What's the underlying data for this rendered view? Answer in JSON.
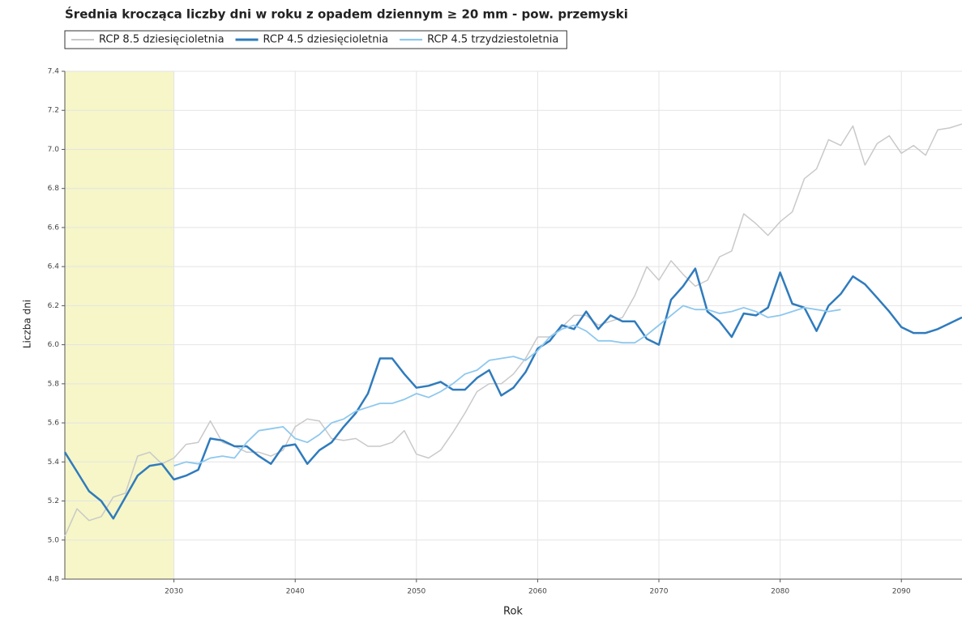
{
  "chart_data": {
    "type": "line",
    "title": "Średnia krocząca liczby dni w roku z opadem dziennym ≥ 20 mm - pow. przemyski",
    "x_label": "Rok",
    "y_label": "Liczba dni",
    "x": [
      2021,
      2022,
      2023,
      2024,
      2025,
      2026,
      2027,
      2028,
      2029,
      2030,
      2031,
      2032,
      2033,
      2034,
      2035,
      2036,
      2037,
      2038,
      2039,
      2040,
      2041,
      2042,
      2043,
      2044,
      2045,
      2046,
      2047,
      2048,
      2049,
      2050,
      2051,
      2052,
      2053,
      2054,
      2055,
      2056,
      2057,
      2058,
      2059,
      2060,
      2061,
      2062,
      2063,
      2064,
      2065,
      2066,
      2067,
      2068,
      2069,
      2070,
      2071,
      2072,
      2073,
      2074,
      2075,
      2076,
      2077,
      2078,
      2079,
      2080,
      2081,
      2082,
      2083,
      2084,
      2085,
      2086,
      2087,
      2088,
      2089,
      2090,
      2091,
      2092,
      2093,
      2094,
      2095
    ],
    "series": [
      {
        "name": "RCP 8.5 dziesięcioletnia",
        "color": "#c9c9c9",
        "width": 1.5,
        "values": [
          5.02,
          5.16,
          5.1,
          5.12,
          5.22,
          5.24,
          5.43,
          5.45,
          5.39,
          5.42,
          5.49,
          5.5,
          5.61,
          5.5,
          5.48,
          5.45,
          5.45,
          5.43,
          5.46,
          5.58,
          5.62,
          5.61,
          5.52,
          5.51,
          5.52,
          5.48,
          5.48,
          5.5,
          5.56,
          5.44,
          5.42,
          5.46,
          5.55,
          5.65,
          5.76,
          5.8,
          5.8,
          5.85,
          5.93,
          6.04,
          6.04,
          6.09,
          6.15,
          6.15,
          6.1,
          6.12,
          6.14,
          6.25,
          6.4,
          6.33,
          6.43,
          6.36,
          6.3,
          6.33,
          6.45,
          6.48,
          6.67,
          6.62,
          6.56,
          6.63,
          6.68,
          6.85,
          6.9,
          7.05,
          7.02,
          7.12,
          6.92,
          7.03,
          7.07,
          6.98,
          7.02,
          6.97,
          7.1,
          7.11,
          7.13
        ]
      },
      {
        "name": "RCP 4.5 dziesięcioletnia",
        "color": "#2f7bbd",
        "width": 2.5,
        "values": [
          5.45,
          5.35,
          5.25,
          5.2,
          5.11,
          5.22,
          5.33,
          5.38,
          5.39,
          5.31,
          5.33,
          5.36,
          5.52,
          5.51,
          5.48,
          5.48,
          5.43,
          5.39,
          5.48,
          5.49,
          5.39,
          5.46,
          5.5,
          5.58,
          5.65,
          5.75,
          5.93,
          5.93,
          5.85,
          5.78,
          5.79,
          5.81,
          5.77,
          5.77,
          5.83,
          5.87,
          5.74,
          5.78,
          5.86,
          5.98,
          6.02,
          6.1,
          6.08,
          6.17,
          6.08,
          6.15,
          6.12,
          6.12,
          6.03,
          6.0,
          6.23,
          6.3,
          6.39,
          6.17,
          6.12,
          6.04,
          6.16,
          6.15,
          6.19,
          6.37,
          6.21,
          6.19,
          6.07,
          6.2,
          6.26,
          6.35,
          6.31,
          6.24,
          6.17,
          6.09,
          6.06,
          6.06,
          6.08,
          6.11,
          6.14
        ]
      },
      {
        "name": "RCP 4.5 trzydziestoletnia",
        "color": "#8ec8ee",
        "width": 1.8,
        "values": [
          null,
          null,
          null,
          null,
          null,
          null,
          null,
          null,
          null,
          5.38,
          5.4,
          5.39,
          5.42,
          5.43,
          5.42,
          5.5,
          5.56,
          5.57,
          5.58,
          5.52,
          5.5,
          5.54,
          5.6,
          5.62,
          5.66,
          5.68,
          5.7,
          5.7,
          5.72,
          5.75,
          5.73,
          5.76,
          5.8,
          5.85,
          5.87,
          5.92,
          5.93,
          5.94,
          5.92,
          5.97,
          6.04,
          6.08,
          6.1,
          6.07,
          6.02,
          6.02,
          6.01,
          6.01,
          6.05,
          6.1,
          6.15,
          6.2,
          6.18,
          6.18,
          6.16,
          6.17,
          6.19,
          6.17,
          6.14,
          6.15,
          6.17,
          6.19,
          6.18,
          6.17,
          6.18,
          null,
          null,
          null,
          null,
          null,
          null,
          null,
          null,
          null,
          null
        ]
      }
    ],
    "xlim": [
      2021,
      2095
    ],
    "ylim": [
      4.8,
      7.4
    ],
    "xticks": [
      2030,
      2040,
      2050,
      2060,
      2070,
      2080,
      2090
    ],
    "yticks": [
      4.8,
      {
        "value": 5,
        "label": "5.0"
      },
      5.2,
      5.4,
      5.6,
      5.8,
      {
        "value": 6,
        "label": "6.0"
      },
      6.2,
      6.4,
      6.6,
      6.8,
      {
        "value": 7,
        "label": "7.0"
      },
      7.2,
      7.4
    ],
    "grid": true,
    "highlight": {
      "range": [
        2021,
        2030
      ],
      "color": "#f6f6c8"
    }
  }
}
